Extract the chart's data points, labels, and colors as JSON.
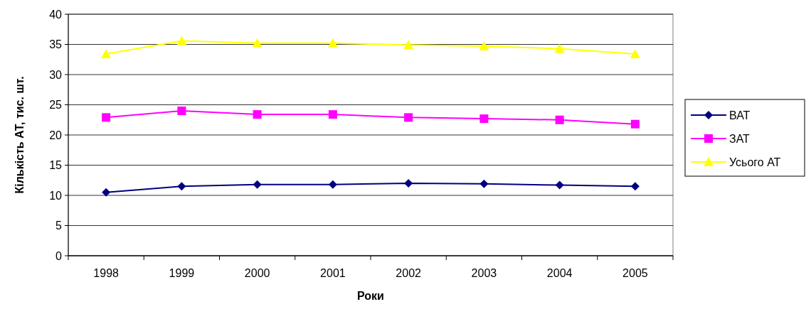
{
  "chart_data": {
    "type": "line",
    "xlabel": "Роки",
    "ylabel": "Кількість АТ, тис. шт.",
    "categories": [
      "1998",
      "1999",
      "2000",
      "2001",
      "2002",
      "2003",
      "2004",
      "2005"
    ],
    "series": [
      {
        "name": "ВАТ",
        "color": "#000080",
        "marker": "diamond",
        "values": [
          10.5,
          11.5,
          11.8,
          11.8,
          12.0,
          11.9,
          11.7,
          11.5
        ]
      },
      {
        "name": "ЗАТ",
        "color": "#ff00ff",
        "marker": "square",
        "values": [
          22.9,
          24.0,
          23.4,
          23.4,
          22.9,
          22.7,
          22.5,
          21.8
        ]
      },
      {
        "name": "Усього АТ",
        "color": "#ffff00",
        "marker": "triangle",
        "values": [
          33.4,
          35.6,
          35.2,
          35.2,
          34.9,
          34.7,
          34.3,
          33.4
        ]
      }
    ],
    "ylim": [
      0,
      40
    ],
    "yticks": [
      0,
      5,
      10,
      15,
      20,
      25,
      30,
      35,
      40
    ],
    "grid": "y",
    "legend": "right",
    "line_style": "solid"
  }
}
